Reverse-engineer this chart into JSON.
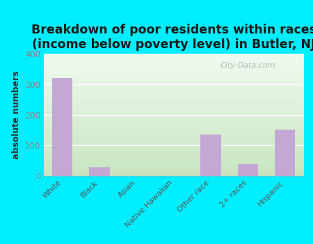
{
  "title": "Breakdown of poor residents within races\n(income below poverty level) in Butler, NJ",
  "categories": [
    "White",
    "Black",
    "Asian",
    "Native Hawaiian",
    "Other race",
    "2+ races",
    "Hispanic"
  ],
  "values": [
    320,
    27,
    0,
    0,
    135,
    40,
    150
  ],
  "bar_color": "#c4a8d4",
  "ylabel": "absolute numbers",
  "ylim": [
    0,
    400
  ],
  "yticks": [
    0,
    100,
    200,
    300,
    400
  ],
  "background_outer": "#00eeff",
  "gradient_top": "#c8e6c0",
  "gradient_bottom": "#f0faf0",
  "grid_color": "#ffffff",
  "title_fontsize": 12.5,
  "ylabel_fontsize": 9,
  "tick_color": "#888888",
  "watermark": "City-Data.com"
}
